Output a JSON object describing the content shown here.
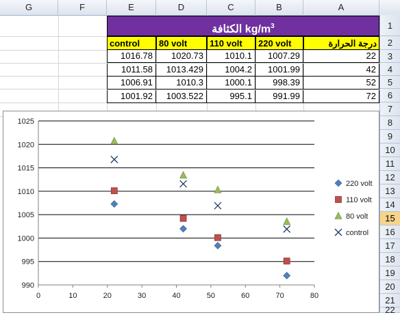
{
  "columns": [
    "G",
    "F",
    "E",
    "D",
    "C",
    "B",
    "A"
  ],
  "rows": [
    "1",
    "2",
    "3",
    "4",
    "5",
    "6",
    "7",
    "8",
    "9",
    "10",
    "11",
    "12",
    "13",
    "14",
    "15",
    "16",
    "17",
    "18",
    "19",
    "20",
    "21",
    "22"
  ],
  "selected_row": "15",
  "table": {
    "title_text": "الكثافة kg/m",
    "title_sup": "3",
    "headers": [
      "control",
      "80 volt",
      "110 volt",
      "220 volt",
      "درجة الحرارة"
    ],
    "data_rows": [
      [
        "1016.78",
        "1020.73",
        "1010.1",
        "1007.29",
        "22"
      ],
      [
        "1011.58",
        "1013.429",
        "1004.2",
        "1001.99",
        "42"
      ],
      [
        "1006.91",
        "1010.3",
        "1000.1",
        "998.39",
        "52"
      ],
      [
        "1001.92",
        "1003.522",
        "995.1",
        "991.99",
        "72"
      ]
    ]
  },
  "colors": {
    "title_bg": "#7030a0",
    "header_bg": "#ffff00",
    "series_220": "#4f81bd",
    "series_110": "#c0504d",
    "series_80": "#9bbb59",
    "series_control": "#1f3864",
    "selected_row_bg": "#f8d48a"
  },
  "chart_data": {
    "type": "scatter",
    "x": [
      22,
      42,
      52,
      72
    ],
    "xlim": [
      0,
      80
    ],
    "ylim": [
      990,
      1025
    ],
    "x_ticks": [
      "0",
      "10",
      "20",
      "30",
      "40",
      "50",
      "60",
      "70",
      "80"
    ],
    "y_ticks": [
      "990",
      "995",
      "1000",
      "1005",
      "1010",
      "1015",
      "1020",
      "1025"
    ],
    "grid": "horizontal",
    "legend_position": "right",
    "series": [
      {
        "name": "220 volt",
        "marker": "diamond",
        "values": [
          1007.29,
          1001.99,
          998.39,
          991.99
        ]
      },
      {
        "name": "110 volt",
        "marker": "square",
        "values": [
          1010.1,
          1004.2,
          1000.1,
          995.1
        ]
      },
      {
        "name": "80 volt",
        "marker": "triangle",
        "values": [
          1020.73,
          1013.429,
          1010.3,
          1003.522
        ]
      },
      {
        "name": "control",
        "marker": "x",
        "values": [
          1016.78,
          1011.58,
          1006.91,
          1001.92
        ]
      }
    ]
  }
}
